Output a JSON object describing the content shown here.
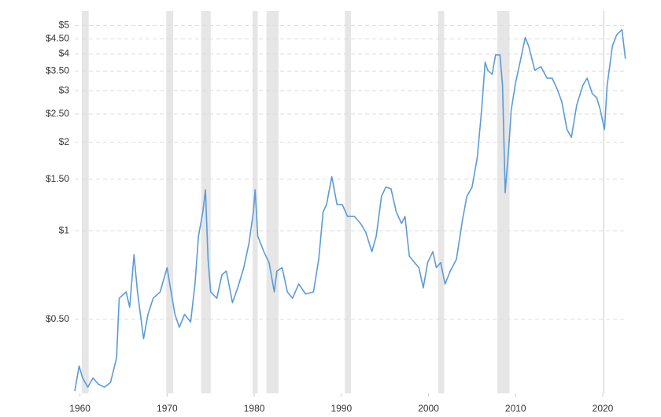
{
  "chart_data": {
    "type": "line",
    "log_scale": true,
    "grid": true,
    "color": "#5b9bd8",
    "shade_color": "#e6e6e6",
    "xlim": [
      1959.4,
      2022.8
    ],
    "xticks": [
      1960,
      1970,
      1980,
      1990,
      2000,
      2010,
      2020
    ],
    "ylim": [
      0.28,
      5.2
    ],
    "yticks": [
      {
        "value": 0.5,
        "label": "$0.50"
      },
      {
        "value": 1,
        "label": "$1"
      },
      {
        "value": 1.5,
        "label": "$1.50"
      },
      {
        "value": 2,
        "label": "$2"
      },
      {
        "value": 2.5,
        "label": "$2.50"
      },
      {
        "value": 3,
        "label": "$3"
      },
      {
        "value": 3.5,
        "label": "$3.50"
      },
      {
        "value": 4,
        "label": "$4"
      },
      {
        "value": 4.5,
        "label": "$4.50"
      },
      {
        "value": 5,
        "label": "$5"
      }
    ],
    "shaded_periods": [
      {
        "start": 1960.2,
        "end": 1961.0
      },
      {
        "start": 1969.9,
        "end": 1970.7
      },
      {
        "start": 1973.9,
        "end": 1975.0
      },
      {
        "start": 1979.8,
        "end": 1980.4
      },
      {
        "start": 1981.4,
        "end": 1982.8
      },
      {
        "start": 1990.4,
        "end": 1991.1
      },
      {
        "start": 2001.1,
        "end": 2001.8
      },
      {
        "start": 2007.9,
        "end": 2009.3
      },
      {
        "start": 2020.0,
        "end": 2020.2
      }
    ],
    "x": [
      1959.4,
      1959.9,
      1960.3,
      1960.9,
      1961.5,
      1962.1,
      1962.8,
      1963.5,
      1964.2,
      1964.5,
      1965.3,
      1965.7,
      1966.2,
      1966.6,
      1967.3,
      1967.8,
      1968.4,
      1969.2,
      1970.0,
      1970.3,
      1970.9,
      1971.4,
      1972.0,
      1972.7,
      1973.2,
      1973.6,
      1974.1,
      1974.4,
      1974.7,
      1975.0,
      1975.7,
      1976.3,
      1976.8,
      1977.5,
      1978.1,
      1978.8,
      1979.4,
      1979.9,
      1980.1,
      1980.4,
      1981.1,
      1981.7,
      1982.3,
      1982.6,
      1983.2,
      1983.8,
      1984.4,
      1985.1,
      1985.9,
      1986.8,
      1987.4,
      1987.9,
      1988.3,
      1988.9,
      1989.5,
      1990.1,
      1990.7,
      1991.5,
      1992.2,
      1992.8,
      1993.5,
      1994.0,
      1994.6,
      1995.1,
      1995.7,
      1996.3,
      1996.9,
      1997.3,
      1997.8,
      1998.4,
      1998.9,
      1999.4,
      1999.9,
      2000.5,
      2000.9,
      2001.4,
      2001.9,
      2002.5,
      2003.2,
      2003.9,
      2004.4,
      2005.0,
      2005.6,
      2006.1,
      2006.5,
      2006.8,
      2007.3,
      2007.7,
      2008.2,
      2008.5,
      2008.8,
      2009.2,
      2009.5,
      2010.0,
      2010.4,
      2011.1,
      2011.5,
      2012.2,
      2012.9,
      2013.6,
      2014.2,
      2014.8,
      2015.3,
      2015.9,
      2016.4,
      2017.0,
      2017.7,
      2018.2,
      2018.8,
      2019.3,
      2019.7,
      2020.2,
      2020.5,
      2021.1,
      2021.6,
      2022.2,
      2022.6
    ],
    "values": [
      0.285,
      0.347,
      0.316,
      0.294,
      0.316,
      0.301,
      0.294,
      0.305,
      0.37,
      0.59,
      0.62,
      0.55,
      0.83,
      0.62,
      0.43,
      0.52,
      0.59,
      0.62,
      0.75,
      0.66,
      0.52,
      0.47,
      0.52,
      0.49,
      0.66,
      0.96,
      1.16,
      1.38,
      0.8,
      0.62,
      0.59,
      0.71,
      0.73,
      0.57,
      0.64,
      0.75,
      0.91,
      1.16,
      1.38,
      0.96,
      0.85,
      0.78,
      0.62,
      0.73,
      0.75,
      0.62,
      0.59,
      0.66,
      0.61,
      0.62,
      0.8,
      1.16,
      1.23,
      1.53,
      1.23,
      1.23,
      1.12,
      1.12,
      1.06,
      0.99,
      0.85,
      0.96,
      1.31,
      1.41,
      1.39,
      1.16,
      1.06,
      1.12,
      0.82,
      0.78,
      0.75,
      0.64,
      0.78,
      0.85,
      0.75,
      0.78,
      0.66,
      0.73,
      0.8,
      1.09,
      1.31,
      1.41,
      1.78,
      2.59,
      3.75,
      3.52,
      3.41,
      3.97,
      3.97,
      3.12,
      1.35,
      1.9,
      2.59,
      3.2,
      3.62,
      4.55,
      4.25,
      3.52,
      3.62,
      3.31,
      3.31,
      3.02,
      2.75,
      2.21,
      2.08,
      2.67,
      3.12,
      3.31,
      2.93,
      2.84,
      2.59,
      2.21,
      3.12,
      4.25,
      4.65,
      4.84,
      3.85
    ]
  }
}
